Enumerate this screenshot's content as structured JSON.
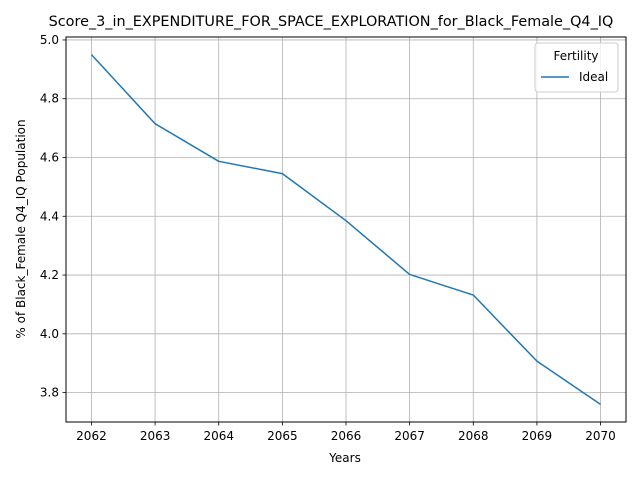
{
  "chart_data": {
    "type": "line",
    "title": "Score_3_in_EXPENDITURE_FOR_SPACE_EXPLORATION_for_Black_Female_Q4_IQ",
    "xlabel": "Years",
    "ylabel": "% of Black_Female Q4_IQ Population",
    "x": [
      2062,
      2063,
      2064,
      2065,
      2066,
      2067,
      2068,
      2069,
      2070
    ],
    "xlim": [
      2061.6,
      2070.4
    ],
    "ylim": [
      3.7,
      5.01
    ],
    "yticks": [
      3.8,
      4.0,
      4.2,
      4.4,
      4.6,
      4.8,
      5.0
    ],
    "grid": true,
    "legend": {
      "title": "Fertility",
      "placement": "top-right"
    },
    "series": [
      {
        "name": "Ideal",
        "color": "#1f77b4",
        "values": [
          4.95,
          4.715,
          4.587,
          4.545,
          4.385,
          4.202,
          4.132,
          3.907,
          3.76
        ]
      }
    ]
  }
}
